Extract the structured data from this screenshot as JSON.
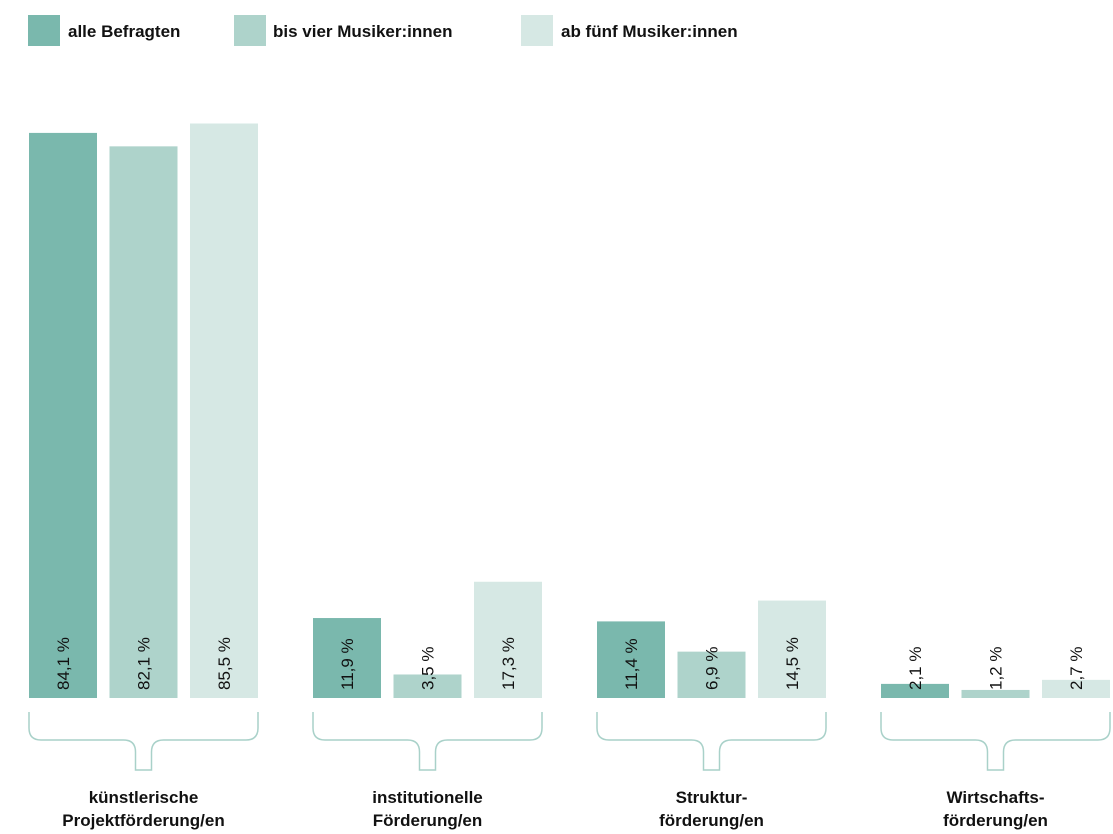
{
  "chart_data": {
    "type": "bar",
    "categories": [
      "künstlerische\nProjektförderung/en",
      "institutionelle\nFörderung/en",
      "Struktur-\nförderung/en",
      "Wirtschafts-\nförderung/en"
    ],
    "series": [
      {
        "name": "alle Befragten",
        "color": "#7ab8ad",
        "values": [
          84.1,
          11.9,
          11.4,
          2.1
        ],
        "value_labels": [
          "84,1 %",
          "11,9 %",
          "11,4 %",
          "2,1 %"
        ]
      },
      {
        "name": "bis vier Musiker:innen",
        "color": "#aed3cb",
        "values": [
          82.1,
          3.5,
          6.9,
          1.2
        ],
        "value_labels": [
          "82,1 %",
          "3,5 %",
          "6,9 %",
          "1,2 %"
        ]
      },
      {
        "name": "ab fünf Musiker:innen",
        "color": "#d6e8e4",
        "values": [
          85.5,
          17.3,
          14.5,
          2.7
        ],
        "value_labels": [
          "85,5 %",
          "17,3 %",
          "14,5 %",
          "2,7 %"
        ]
      }
    ]
  }
}
